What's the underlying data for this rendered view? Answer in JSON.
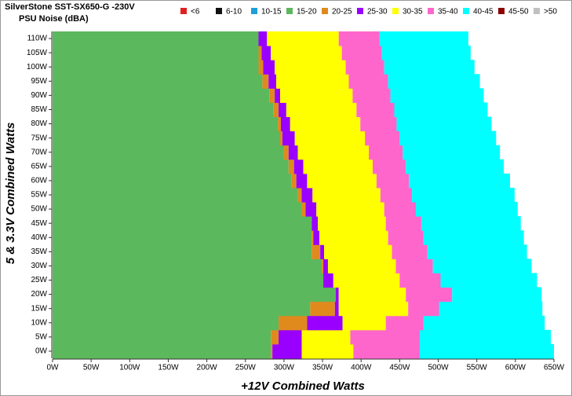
{
  "chart_data": {
    "type": "bar",
    "orientation": "horizontal",
    "stacked": true,
    "title": "SilverStone SST-SX650-G -230V",
    "subtitle": "PSU Noise (dBA)",
    "xlabel": "+12V Combined Watts",
    "ylabel": "5 & 3.3V Combined Watts",
    "y": [
      0,
      5,
      10,
      15,
      20,
      25,
      30,
      35,
      40,
      45,
      50,
      55,
      60,
      65,
      70,
      75,
      80,
      85,
      90,
      95,
      100,
      105,
      110
    ],
    "series": [
      {
        "name": "<6",
        "color": "#e02020",
        "values": [
          0,
          0,
          0,
          0,
          0,
          0,
          0,
          0,
          0,
          0,
          0,
          0,
          0,
          0,
          0,
          0,
          0,
          0,
          0,
          0,
          0,
          0,
          0
        ]
      },
      {
        "name": "6-10",
        "color": "#111111",
        "values": [
          0,
          0,
          0,
          0,
          0,
          0,
          0,
          0,
          0,
          0,
          0,
          0,
          0,
          0,
          0,
          0,
          0,
          0,
          0,
          0,
          0,
          0,
          0
        ]
      },
      {
        "name": "10-15",
        "color": "#1f9ed8",
        "values": [
          0,
          0,
          0,
          0,
          0,
          0,
          0,
          0,
          0,
          0,
          0,
          0,
          0,
          0,
          0,
          0,
          0,
          0,
          0,
          0,
          0,
          0,
          0
        ]
      },
      {
        "name": "15-20",
        "color": "#5cb85c",
        "values": [
          283,
          283,
          293,
          334,
          367,
          351,
          349,
          336,
          336,
          336,
          323,
          318,
          310,
          306,
          300,
          295,
          292,
          286,
          281,
          272,
          267,
          267,
          267
        ]
      },
      {
        "name": "20-25",
        "color": "#e08a1e",
        "values": [
          2,
          10,
          37,
          32,
          0,
          0,
          2,
          11,
          2,
          0,
          5,
          5,
          6,
          7,
          6,
          3,
          4,
          7,
          7,
          8,
          6,
          4,
          0
        ]
      },
      {
        "name": "25-30",
        "color": "#9900ff",
        "values": [
          38,
          30,
          46,
          5,
          4,
          13,
          6,
          5,
          8,
          8,
          14,
          14,
          14,
          12,
          12,
          16,
          12,
          10,
          7,
          10,
          15,
          12,
          11
        ]
      },
      {
        "name": "30-35",
        "color": "#ffff00",
        "values": [
          67,
          63,
          56,
          90,
          87,
          86,
          88,
          88,
          89,
          88,
          88,
          88,
          90,
          90,
          92,
          91,
          91,
          91,
          94,
          94,
          92,
          92,
          93
        ]
      },
      {
        "name": "35-40",
        "color": "#ff66cc",
        "values": [
          86,
          90,
          49,
          40,
          60,
          53,
          48,
          46,
          46,
          46,
          41,
          41,
          42,
          43,
          44,
          45,
          47,
          49,
          49,
          51,
          50,
          52,
          53
        ]
      },
      {
        "name": "40-45",
        "color": "#00ffff",
        "values": [
          174,
          170,
          157,
          134,
          116,
          125,
          128,
          129,
          130,
          129,
          132,
          133,
          131,
          127,
          126,
          125,
          123,
          121,
          121,
          119,
          117,
          115,
          115
        ]
      },
      {
        "name": "45-50",
        "color": "#8b0000",
        "values": [
          0,
          0,
          0,
          0,
          0,
          0,
          0,
          0,
          0,
          0,
          0,
          0,
          0,
          0,
          0,
          0,
          0,
          0,
          0,
          0,
          0,
          0,
          0
        ]
      },
      {
        "name": ">50",
        "color": "#c0c0c0",
        "values": [
          0,
          0,
          0,
          0,
          0,
          0,
          0,
          0,
          0,
          0,
          0,
          0,
          0,
          0,
          0,
          0,
          0,
          0,
          0,
          0,
          0,
          0,
          0
        ]
      }
    ],
    "xlim": [
      0,
      650
    ],
    "xticks": [
      {
        "value": 0,
        "label": "0W"
      },
      {
        "value": 50,
        "label": "50W"
      },
      {
        "value": 100,
        "label": "100W"
      },
      {
        "value": 150,
        "label": "150W"
      },
      {
        "value": 200,
        "label": "200W"
      },
      {
        "value": 250,
        "label": "250W"
      },
      {
        "value": 300,
        "label": "300W"
      },
      {
        "value": 350,
        "label": "350W"
      },
      {
        "value": 400,
        "label": "400W"
      },
      {
        "value": 450,
        "label": "450W"
      },
      {
        "value": 500,
        "label": "500W"
      },
      {
        "value": 550,
        "label": "550W"
      },
      {
        "value": 600,
        "label": "600W"
      },
      {
        "value": 650,
        "label": "650W"
      }
    ],
    "ylim": [
      -2.5,
      112.5
    ],
    "yticks": [
      {
        "value": 0,
        "label": "0W"
      },
      {
        "value": 5,
        "label": "5W"
      },
      {
        "value": 10,
        "label": "10W"
      },
      {
        "value": 15,
        "label": "15W"
      },
      {
        "value": 20,
        "label": "20W"
      },
      {
        "value": 25,
        "label": "25W"
      },
      {
        "value": 30,
        "label": "30W"
      },
      {
        "value": 35,
        "label": "35W"
      },
      {
        "value": 40,
        "label": "40W"
      },
      {
        "value": 45,
        "label": "45W"
      },
      {
        "value": 50,
        "label": "50W"
      },
      {
        "value": 55,
        "label": "55W"
      },
      {
        "value": 60,
        "label": "60W"
      },
      {
        "value": 65,
        "label": "65W"
      },
      {
        "value": 70,
        "label": "70W"
      },
      {
        "value": 75,
        "label": "75W"
      },
      {
        "value": 80,
        "label": "80W"
      },
      {
        "value": 85,
        "label": "85W"
      },
      {
        "value": 90,
        "label": "90W"
      },
      {
        "value": 95,
        "label": "95W"
      },
      {
        "value": 100,
        "label": "100W"
      },
      {
        "value": 105,
        "label": "105W"
      },
      {
        "value": 110,
        "label": "110W"
      }
    ]
  }
}
